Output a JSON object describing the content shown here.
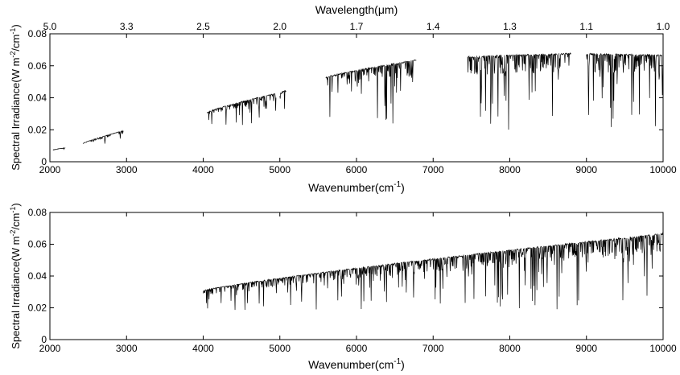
{
  "chart_data": [
    {
      "type": "line",
      "panel": "top",
      "top_axis": {
        "label_text": "Wavelength(",
        "label_unit": "μm",
        "label_close": ")",
        "ticks": [
          {
            "label": "5.0",
            "wavenumber": 2000
          },
          {
            "label": "3.3",
            "wavenumber": 3000
          },
          {
            "label": "2.5",
            "wavenumber": 4000
          },
          {
            "label": "2.0",
            "wavenumber": 5000
          },
          {
            "label": "1.7",
            "wavenumber": 6000
          },
          {
            "label": "1.4",
            "wavenumber": 7000
          },
          {
            "label": "1.3",
            "wavenumber": 8000
          },
          {
            "label": "1.1",
            "wavenumber": 9000
          },
          {
            "label": "1.0",
            "wavenumber": 10000
          }
        ]
      },
      "xlabel_text": "Wavenumber(cm",
      "xlabel_sup": "-1",
      "xlabel_close": ")",
      "ylabel_text": "Spectral Irradiance(W m",
      "ylabel_sup1": "-2",
      "ylabel_mid": "/cm",
      "ylabel_sup2": "-1",
      "ylabel_close": ")",
      "xlim": [
        2000,
        10000
      ],
      "ylim": [
        0,
        0.08
      ],
      "xticks": [
        "2000",
        "3000",
        "4000",
        "5000",
        "6000",
        "7000",
        "8000",
        "9000",
        "10000"
      ],
      "yticks": [
        "0",
        "0.02",
        "0.04",
        "0.06",
        "0.08"
      ],
      "grid": false,
      "color": "#000000",
      "segments": [
        {
          "x": [
            2040,
            2200
          ],
          "y": [
            0.0075,
            0.0088
          ],
          "dip_min": 0.0065
        },
        {
          "x": [
            2430,
            2960
          ],
          "y": [
            0.0115,
            0.0195
          ],
          "dip_min": 0.0105
        },
        {
          "x": [
            4050,
            4950
          ],
          "y": [
            0.031,
            0.043
          ],
          "dip_min": 0.022
        },
        {
          "x": [
            5000,
            5080
          ],
          "y": [
            0.043,
            0.045
          ],
          "dip_min": 0.018
        },
        {
          "x": [
            5600,
            6780
          ],
          "y": [
            0.053,
            0.064
          ],
          "dip_min": 0.023
        },
        {
          "x": [
            7450,
            8800
          ],
          "y": [
            0.066,
            0.068
          ],
          "dip_min": 0.019
        },
        {
          "x": [
            9000,
            10000
          ],
          "y": [
            0.068,
            0.067
          ],
          "dip_min": 0.019
        }
      ]
    },
    {
      "type": "line",
      "panel": "bottom",
      "xlabel_text": "Wavenumber(cm",
      "xlabel_sup": "-1",
      "xlabel_close": ")",
      "ylabel_text": "Spectral Irradiance(W m",
      "ylabel_sup1": "-2",
      "ylabel_mid": "/cm",
      "ylabel_sup2": "-1",
      "ylabel_close": ")",
      "xlim": [
        2000,
        10000
      ],
      "ylim": [
        0,
        0.08
      ],
      "xticks": [
        "2000",
        "3000",
        "4000",
        "5000",
        "6000",
        "7000",
        "8000",
        "9000",
        "10000"
      ],
      "yticks": [
        "0",
        "0.02",
        "0.04",
        "0.06",
        "0.08"
      ],
      "grid": false,
      "color": "#000000",
      "segments": [
        {
          "x": [
            4000,
            10000
          ],
          "y": [
            0.031,
            0.067
          ],
          "dip_min": 0.018
        }
      ]
    }
  ]
}
